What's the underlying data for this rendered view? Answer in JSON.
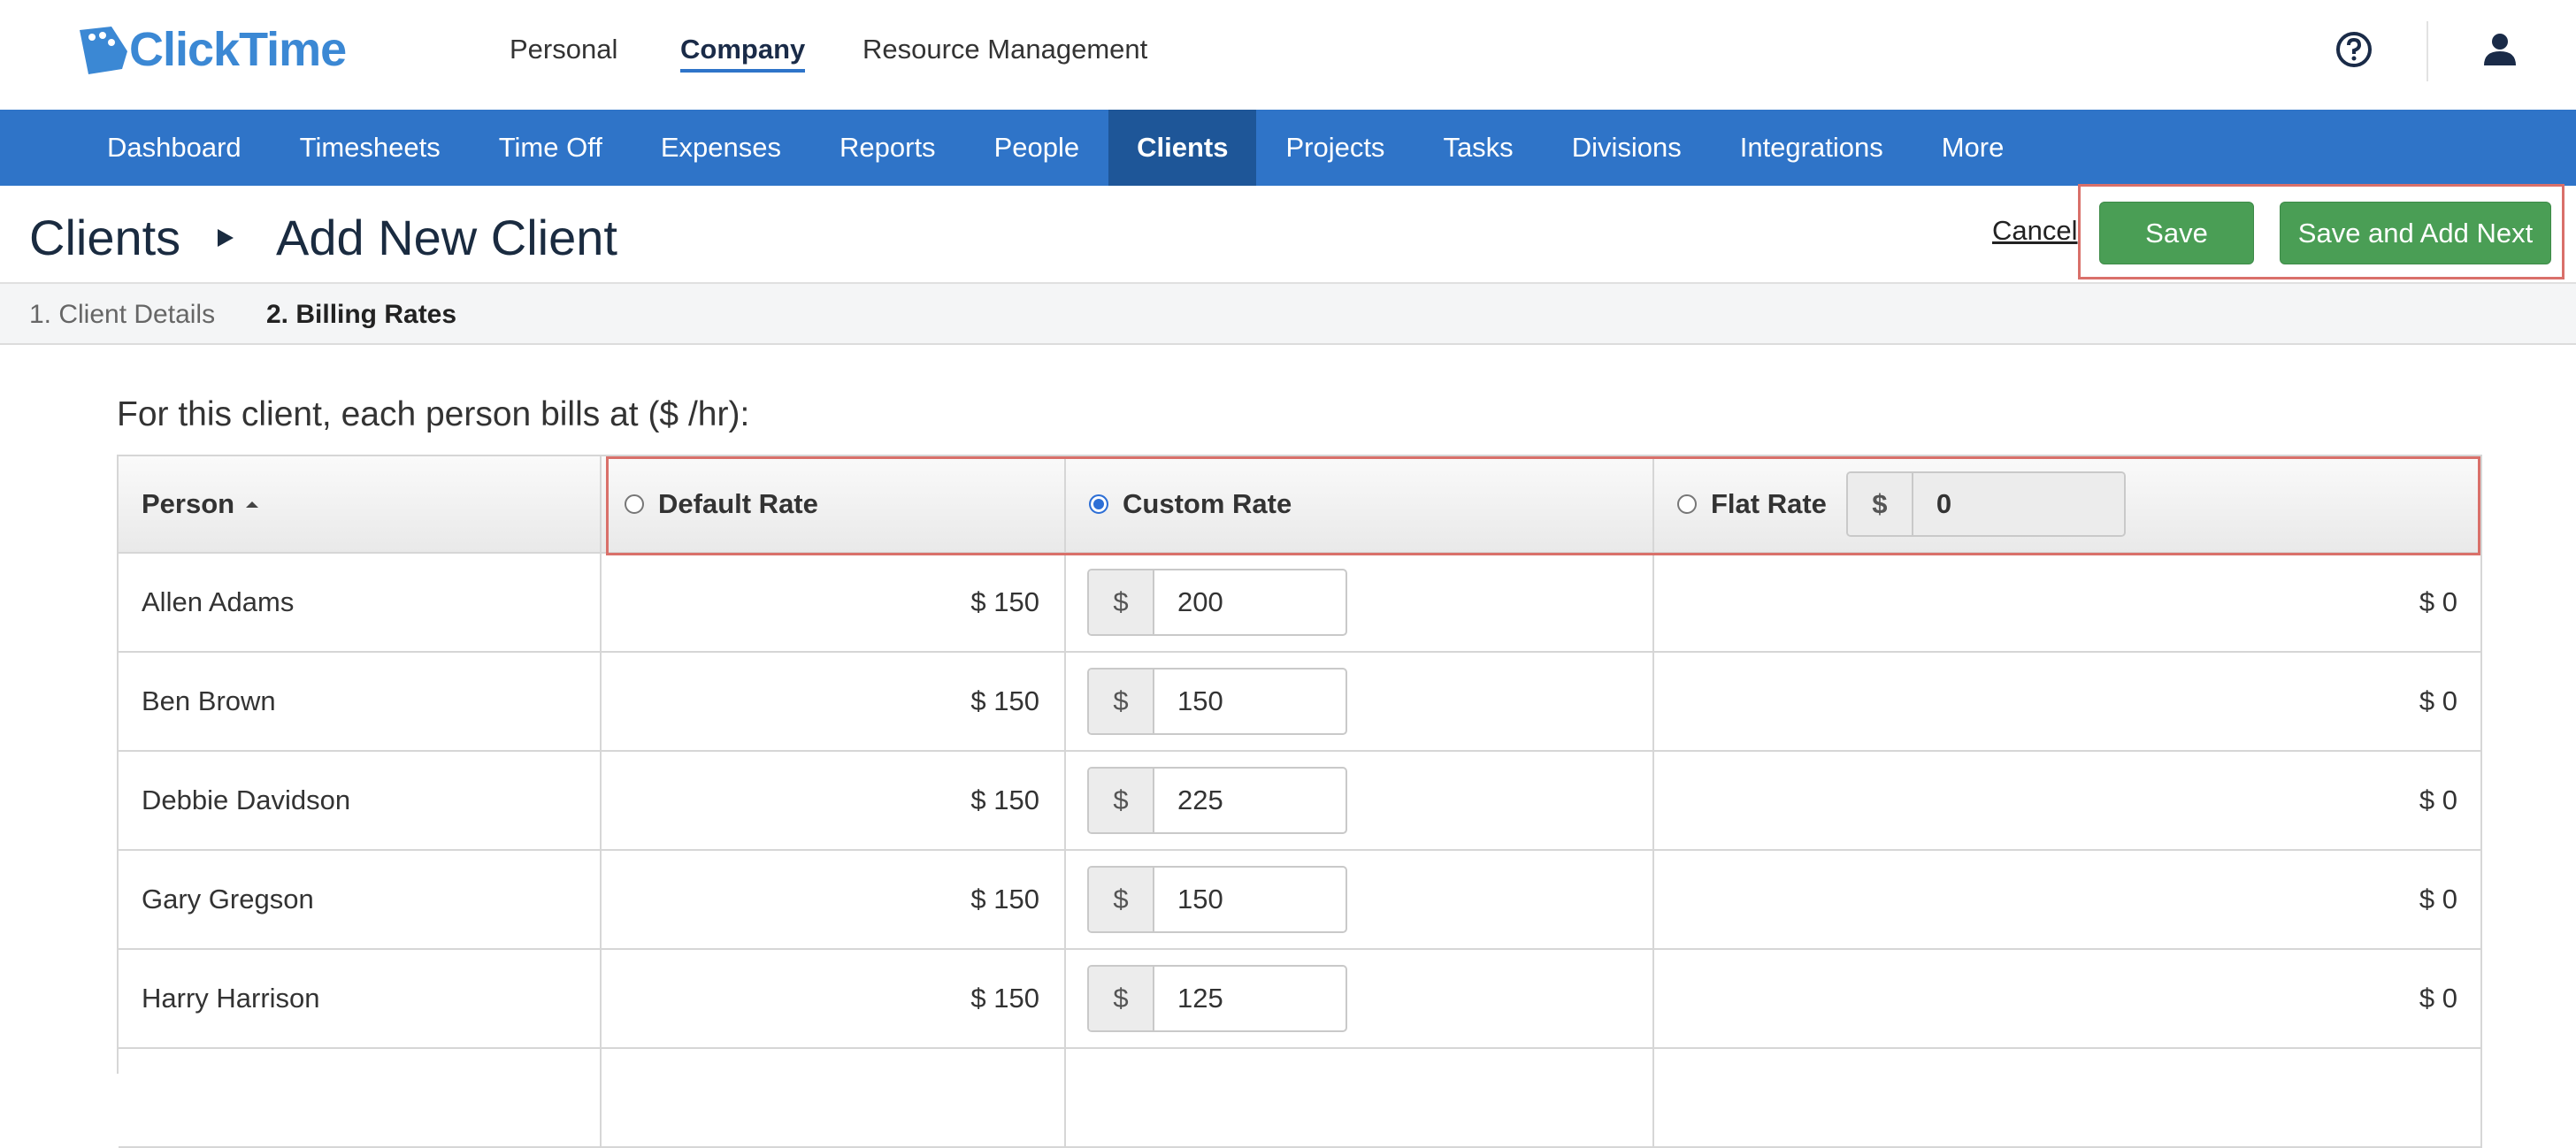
{
  "header": {
    "logo": "ClickTime",
    "nav": [
      "Personal",
      "Company",
      "Resource Management"
    ]
  },
  "menu": [
    "Dashboard",
    "Timesheets",
    "Time Off",
    "Expenses",
    "Reports",
    "People",
    "Clients",
    "Projects",
    "Tasks",
    "Divisions",
    "Integrations",
    "More"
  ],
  "breadcrumb": {
    "root": "Clients",
    "current": "Add New Client"
  },
  "actions": {
    "cancel": "Cancel",
    "save": "Save",
    "save_next": "Save and Add Next"
  },
  "tabs": [
    "1. Client Details",
    "2. Billing Rates"
  ],
  "intro": "For this client, each person bills at ($ /hr):",
  "table": {
    "headers": {
      "person": "Person",
      "default": "Default Rate",
      "custom": "Custom Rate",
      "flat": "Flat Rate",
      "flat_currency": "$",
      "flat_value": "0"
    },
    "rows": [
      {
        "name": "Allen Adams",
        "default": "$ 150",
        "currency": "$",
        "custom": "200",
        "flat": "$ 0"
      },
      {
        "name": "Ben Brown",
        "default": "$ 150",
        "currency": "$",
        "custom": "150",
        "flat": "$ 0"
      },
      {
        "name": "Debbie Davidson",
        "default": "$ 150",
        "currency": "$",
        "custom": "225",
        "flat": "$ 0"
      },
      {
        "name": "Gary Gregson",
        "default": "$ 150",
        "currency": "$",
        "custom": "150",
        "flat": "$ 0"
      },
      {
        "name": "Harry Harrison",
        "default": "$ 150",
        "currency": "$",
        "custom": "125",
        "flat": "$ 0"
      }
    ]
  }
}
